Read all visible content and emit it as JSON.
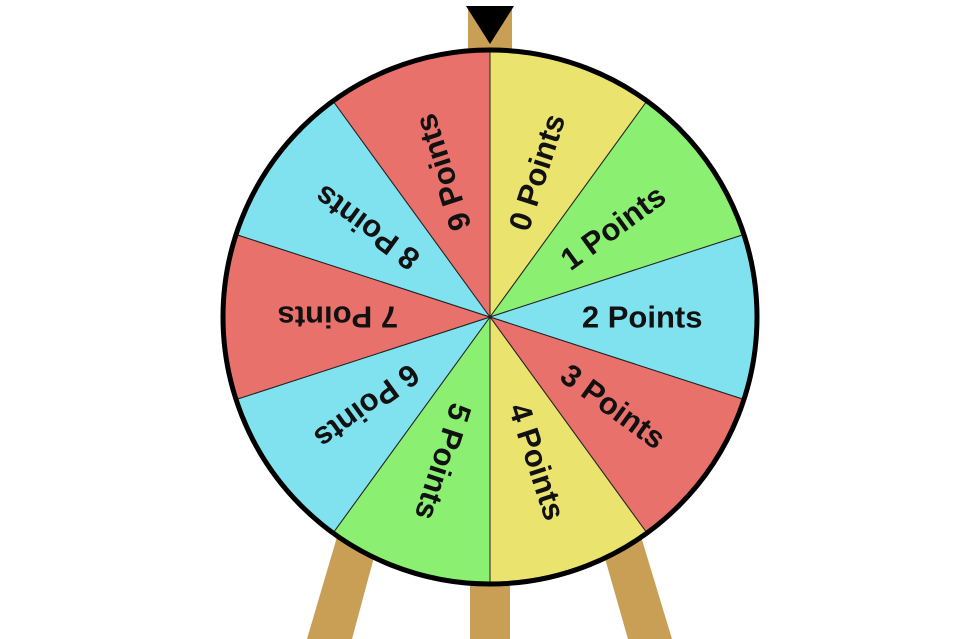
{
  "wheel": {
    "segments": [
      {
        "label": "0 Points",
        "color": "#EAE36E"
      },
      {
        "label": "1 Points",
        "color": "#8BEF72"
      },
      {
        "label": "2 Points",
        "color": "#80E2EE"
      },
      {
        "label": "3 Points",
        "color": "#E8716B"
      },
      {
        "label": "4 Points",
        "color": "#EAE36E"
      },
      {
        "label": "5 Points",
        "color": "#8BEF72"
      },
      {
        "label": "6 Points",
        "color": "#80E2EE"
      },
      {
        "label": "7 Points",
        "color": "#E8716B"
      },
      {
        "label": "8 Points",
        "color": "#80E2EE"
      },
      {
        "label": "9 Points",
        "color": "#E8716B"
      }
    ],
    "rim_color": "#000000",
    "pointer_color": "#000000"
  },
  "stand": {
    "color": "#C99E55"
  }
}
